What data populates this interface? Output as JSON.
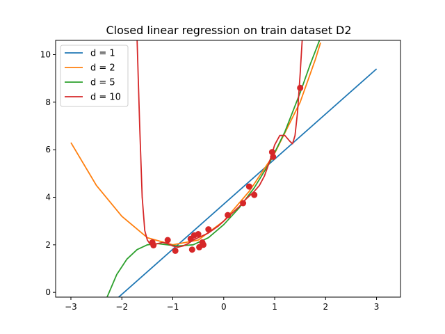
{
  "chart_data": {
    "type": "line",
    "title": "Closed linear regression on train dataset D2",
    "xlabel": "",
    "ylabel": "",
    "xlim": [
      -3.3,
      3.47
    ],
    "ylim": [
      -0.2,
      10.6
    ],
    "xticks": [
      -3,
      -2,
      -1,
      0,
      1,
      2,
      3
    ],
    "yticks": [
      0,
      2,
      4,
      6,
      8,
      10
    ],
    "grid": false,
    "legend_position": "top-left",
    "colors": {
      "d1": "#1f77b4",
      "d2": "#ff7f0e",
      "d5": "#2ca02c",
      "d10": "#d62728",
      "points": "#d62728"
    },
    "series": [
      {
        "name": "d = 1",
        "color": "#1f77b4",
        "x": [
          -2.3,
          3.0
        ],
        "y": [
          -0.65,
          9.4
        ]
      },
      {
        "name": "d = 2",
        "color": "#ff7f0e",
        "x": [
          -3.0,
          -2.5,
          -2.0,
          -1.5,
          -1.0,
          -0.5,
          0.0,
          0.5,
          1.0,
          1.5,
          1.8,
          1.9
        ],
        "y": [
          6.3,
          4.5,
          3.2,
          2.3,
          2.0,
          2.2,
          3.0,
          4.25,
          5.85,
          8.0,
          9.8,
          10.5
        ]
      },
      {
        "name": "d = 5",
        "color": "#2ca02c",
        "x": [
          -2.3,
          -2.1,
          -1.9,
          -1.7,
          -1.5,
          -1.3,
          -1.1,
          -0.9,
          -0.6,
          -0.3,
          0.0,
          0.3,
          0.6,
          0.9,
          1.2,
          1.5,
          1.7,
          1.88
        ],
        "y": [
          -0.25,
          0.75,
          1.4,
          1.8,
          2.0,
          2.05,
          2.0,
          1.95,
          2.0,
          2.3,
          2.85,
          3.55,
          4.4,
          5.45,
          6.75,
          8.4,
          9.6,
          10.6
        ]
      },
      {
        "name": "d = 10",
        "color": "#d62728",
        "x": [
          -1.7,
          -1.65,
          -1.6,
          -1.55,
          -1.5,
          -1.45,
          -1.4,
          -1.3,
          -1.2,
          -1.1,
          -1.0,
          -0.9,
          -0.8,
          -0.7,
          -0.6,
          -0.5,
          -0.4,
          -0.3,
          -0.2,
          -0.1,
          0.0,
          0.1,
          0.2,
          0.3,
          0.4,
          0.5,
          0.6,
          0.7,
          0.8,
          0.9,
          1.0,
          1.1,
          1.2,
          1.3,
          1.35,
          1.4,
          1.45,
          1.5,
          1.54
        ],
        "y": [
          10.6,
          7.0,
          4.0,
          2.6,
          2.2,
          2.05,
          2.0,
          2.05,
          2.1,
          2.05,
          1.95,
          1.9,
          1.95,
          2.05,
          2.2,
          2.3,
          2.4,
          2.5,
          2.65,
          2.8,
          3.0,
          3.2,
          3.4,
          3.6,
          3.85,
          4.05,
          4.25,
          4.5,
          4.9,
          5.5,
          6.2,
          6.6,
          6.6,
          6.35,
          6.25,
          6.6,
          7.6,
          9.2,
          10.6
        ]
      }
    ],
    "points": {
      "color": "#d62728",
      "x": [
        -1.4,
        -1.38,
        -1.1,
        -0.95,
        -0.65,
        -0.62,
        -0.58,
        -0.5,
        -0.48,
        -0.42,
        -0.4,
        -0.3,
        0.08,
        0.38,
        0.5,
        0.6,
        0.95,
        0.97,
        1.5
      ],
      "y": [
        2.1,
        1.98,
        2.2,
        1.75,
        2.25,
        1.8,
        2.4,
        2.45,
        1.9,
        2.1,
        2.0,
        2.65,
        3.25,
        3.75,
        4.45,
        4.1,
        5.9,
        5.7,
        8.6
      ]
    }
  }
}
